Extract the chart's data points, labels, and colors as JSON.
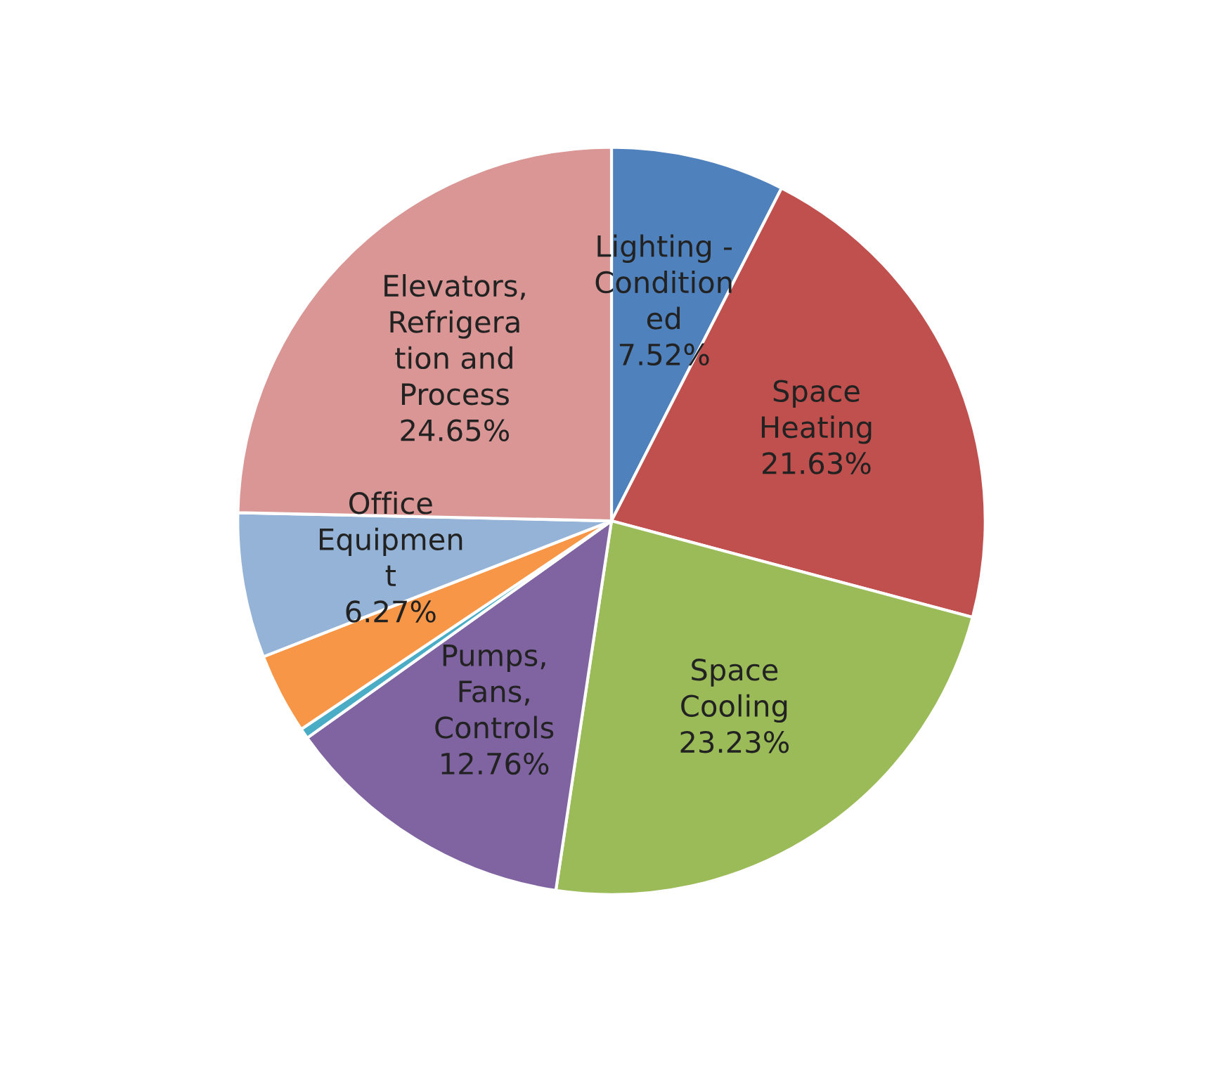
{
  "chart_data": {
    "type": "pie",
    "categories": [
      "Lighting -\nCondition\ned",
      "Space\nHeating",
      "Space\nCooling",
      "Pumps,\nFans,\nControls",
      null,
      null,
      "Office\nEquipmen\nt",
      "Elevators,\nRefrigera\ntion and\nProcess"
    ],
    "values": [
      7.52,
      21.63,
      23.23,
      12.76,
      0.45,
      3.49,
      6.27,
      24.65
    ],
    "value_labels": [
      "7.52%",
      "21.63%",
      "23.23%",
      "12.76%",
      null,
      null,
      "6.27%",
      "24.65%"
    ],
    "colors": [
      "#4f81bd",
      "#c0504d",
      "#9bbb59",
      "#8064a2",
      "#4bacc6",
      "#f79646",
      "#95b3d7",
      "#d99694"
    ],
    "legend": false
  }
}
